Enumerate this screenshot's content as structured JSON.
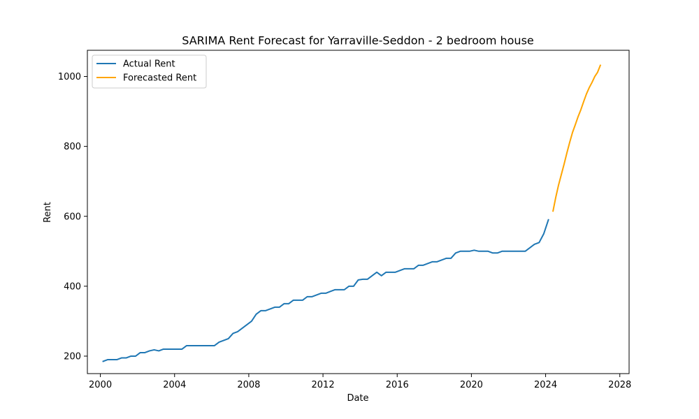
{
  "chart_data": {
    "type": "line",
    "title": "SARIMA Rent Forecast for Yarraville-Seddon - 2 bedroom house",
    "xlabel": "Date",
    "ylabel": "Rent",
    "xlim": [
      1999.3,
      2028.5
    ],
    "ylim": [
      150,
      1075
    ],
    "x_ticks": [
      2000,
      2004,
      2008,
      2012,
      2016,
      2020,
      2024,
      2028
    ],
    "x_tick_labels": [
      "2000",
      "2004",
      "2008",
      "2012",
      "2016",
      "2020",
      "2024",
      "2028"
    ],
    "y_ticks": [
      200,
      400,
      600,
      800,
      1000
    ],
    "y_tick_labels": [
      "200",
      "400",
      "600",
      "800",
      "1000"
    ],
    "grid": false,
    "legend_position": "top-left",
    "series": [
      {
        "name": "Actual Rent",
        "color": "#1f77b4",
        "points": [
          [
            2000.15,
            185
          ],
          [
            2000.4,
            190
          ],
          [
            2000.65,
            190
          ],
          [
            2000.9,
            190
          ],
          [
            2001.15,
            195
          ],
          [
            2001.4,
            195
          ],
          [
            2001.65,
            200
          ],
          [
            2001.9,
            200
          ],
          [
            2002.15,
            210
          ],
          [
            2002.4,
            210
          ],
          [
            2002.65,
            215
          ],
          [
            2002.9,
            218
          ],
          [
            2003.15,
            215
          ],
          [
            2003.4,
            220
          ],
          [
            2003.65,
            220
          ],
          [
            2003.9,
            220
          ],
          [
            2004.15,
            220
          ],
          [
            2004.4,
            220
          ],
          [
            2004.65,
            230
          ],
          [
            2004.9,
            230
          ],
          [
            2005.15,
            230
          ],
          [
            2005.4,
            230
          ],
          [
            2005.65,
            230
          ],
          [
            2005.9,
            230
          ],
          [
            2006.15,
            230
          ],
          [
            2006.4,
            240
          ],
          [
            2006.65,
            245
          ],
          [
            2006.9,
            250
          ],
          [
            2007.15,
            265
          ],
          [
            2007.4,
            270
          ],
          [
            2007.65,
            280
          ],
          [
            2007.9,
            290
          ],
          [
            2008.15,
            300
          ],
          [
            2008.4,
            320
          ],
          [
            2008.65,
            330
          ],
          [
            2008.9,
            330
          ],
          [
            2009.15,
            335
          ],
          [
            2009.4,
            340
          ],
          [
            2009.65,
            340
          ],
          [
            2009.9,
            350
          ],
          [
            2010.15,
            350
          ],
          [
            2010.4,
            360
          ],
          [
            2010.65,
            360
          ],
          [
            2010.9,
            360
          ],
          [
            2011.15,
            370
          ],
          [
            2011.4,
            370
          ],
          [
            2011.65,
            375
          ],
          [
            2011.9,
            380
          ],
          [
            2012.15,
            380
          ],
          [
            2012.4,
            385
          ],
          [
            2012.65,
            390
          ],
          [
            2012.9,
            390
          ],
          [
            2013.15,
            390
          ],
          [
            2013.4,
            400
          ],
          [
            2013.65,
            400
          ],
          [
            2013.9,
            418
          ],
          [
            2014.15,
            420
          ],
          [
            2014.4,
            420
          ],
          [
            2014.65,
            430
          ],
          [
            2014.9,
            440
          ],
          [
            2015.15,
            430
          ],
          [
            2015.4,
            440
          ],
          [
            2015.65,
            440
          ],
          [
            2015.9,
            440
          ],
          [
            2016.15,
            445
          ],
          [
            2016.4,
            450
          ],
          [
            2016.65,
            450
          ],
          [
            2016.9,
            450
          ],
          [
            2017.15,
            460
          ],
          [
            2017.4,
            460
          ],
          [
            2017.65,
            465
          ],
          [
            2017.9,
            470
          ],
          [
            2018.15,
            470
          ],
          [
            2018.4,
            475
          ],
          [
            2018.65,
            480
          ],
          [
            2018.9,
            480
          ],
          [
            2019.15,
            495
          ],
          [
            2019.4,
            500
          ],
          [
            2019.65,
            500
          ],
          [
            2019.9,
            500
          ],
          [
            2020.15,
            503
          ],
          [
            2020.4,
            500
          ],
          [
            2020.65,
            500
          ],
          [
            2020.9,
            500
          ],
          [
            2021.15,
            495
          ],
          [
            2021.4,
            495
          ],
          [
            2021.65,
            500
          ],
          [
            2021.9,
            500
          ],
          [
            2022.15,
            500
          ],
          [
            2022.4,
            500
          ],
          [
            2022.65,
            500
          ],
          [
            2022.9,
            500
          ],
          [
            2023.15,
            510
          ],
          [
            2023.4,
            520
          ],
          [
            2023.65,
            525
          ],
          [
            2023.9,
            550
          ],
          [
            2024.15,
            590
          ]
        ]
      },
      {
        "name": "Forecasted Rent",
        "color": "#ffa500",
        "points": [
          [
            2024.4,
            615
          ],
          [
            2024.55,
            655
          ],
          [
            2024.7,
            690
          ],
          [
            2024.85,
            720
          ],
          [
            2025.0,
            750
          ],
          [
            2025.15,
            782
          ],
          [
            2025.3,
            812
          ],
          [
            2025.45,
            840
          ],
          [
            2025.6,
            862
          ],
          [
            2025.75,
            885
          ],
          [
            2025.9,
            905
          ],
          [
            2026.05,
            928
          ],
          [
            2026.2,
            950
          ],
          [
            2026.35,
            968
          ],
          [
            2026.5,
            983
          ],
          [
            2026.65,
            1000
          ],
          [
            2026.8,
            1012
          ],
          [
            2026.95,
            1032
          ]
        ]
      }
    ]
  }
}
